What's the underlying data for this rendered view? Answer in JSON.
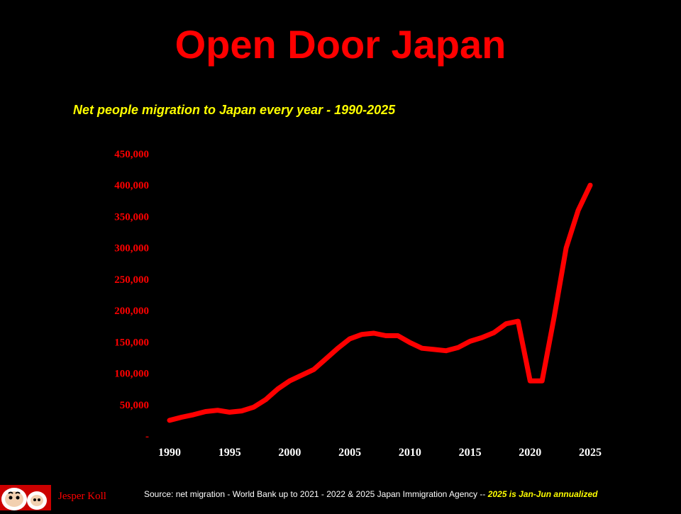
{
  "title": "Open Door Japan",
  "footer": {
    "source": "Source: net migration  -  World Bank up to 2021 -  2022 & 2025 Japan Immigration Agency -- ",
    "note": "2025 is Jan-Jun annualized",
    "author": "Jesper Koll",
    "logo_icon": "daruma-doll-logo"
  },
  "colors": {
    "background": "#000000",
    "accent": "#ff0000",
    "subtitle": "#ffff00",
    "axis_labels": "#ffffff"
  },
  "chart_data": {
    "type": "line",
    "title": "Net people migration to Japan every year  - 1990-2025",
    "xlabel": "",
    "ylabel": "",
    "ylim": [
      0,
      450000
    ],
    "xlim": [
      1990,
      2025
    ],
    "yticks": [
      0,
      50000,
      100000,
      150000,
      200000,
      250000,
      300000,
      350000,
      400000,
      450000
    ],
    "ytick_labels": [
      "-",
      "50,000",
      "100,000",
      "150,000",
      "200,000",
      "250,000",
      "300,000",
      "350,000",
      "400,000",
      "450,000"
    ],
    "xticks": [
      1990,
      1995,
      2000,
      2005,
      2010,
      2015,
      2020,
      2025
    ],
    "xtick_labels": [
      "1990",
      "1995",
      "2000",
      "2005",
      "2010",
      "2015",
      "2020",
      "2025"
    ],
    "grid": false,
    "legend": "none",
    "series": [
      {
        "color": "#ff0000",
        "x": [
          1990,
          1991,
          1992,
          1993,
          1994,
          1995,
          1996,
          1997,
          1998,
          1999,
          2000,
          2001,
          2002,
          2003,
          2004,
          2005,
          2006,
          2007,
          2008,
          2009,
          2010,
          2011,
          2012,
          2013,
          2014,
          2015,
          2016,
          2017,
          2018,
          2019,
          2020,
          2021,
          2022,
          2023,
          2024,
          2025
        ],
        "values": [
          25000,
          30000,
          34000,
          39000,
          41000,
          38000,
          40000,
          46000,
          58000,
          75000,
          88000,
          97000,
          106000,
          123000,
          140000,
          155000,
          162000,
          164000,
          160000,
          160000,
          149000,
          140000,
          138000,
          136000,
          141000,
          151000,
          157000,
          165000,
          179000,
          183000,
          88000,
          88000,
          190000,
          300000,
          360000,
          400000
        ]
      }
    ]
  }
}
